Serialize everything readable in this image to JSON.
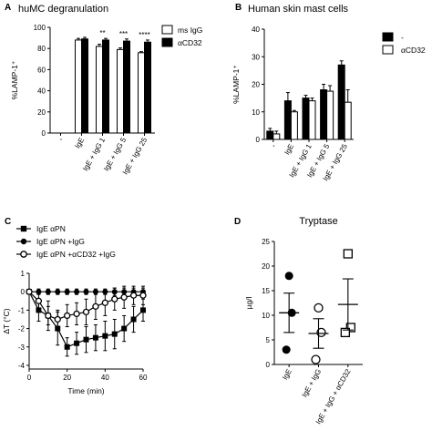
{
  "chart_data": [
    {
      "panel": "A",
      "type": "bar",
      "title": "huMC degranulation",
      "ylabel": "%LAMP-1⁺",
      "ylim": [
        0,
        100
      ],
      "yticks": [
        0,
        20,
        40,
        60,
        80,
        100
      ],
      "categories": [
        "-",
        "IgE",
        "IgE + IgG 1",
        "IgE + IgG 5",
        "IgE + IgG 25"
      ],
      "series": [
        {
          "name": "ms IgG",
          "color": "#ffffff",
          "values": [
            0,
            88,
            82,
            79,
            76
          ],
          "errors": [
            0,
            1.5,
            2,
            1.5,
            1
          ]
        },
        {
          "name": "αCD32",
          "color": "#000000",
          "values": [
            0,
            89,
            88,
            87,
            86
          ],
          "errors": [
            0,
            1.5,
            1.5,
            2,
            2
          ]
        }
      ],
      "significance": [
        "",
        "",
        "**",
        "***",
        "****"
      ]
    },
    {
      "panel": "B",
      "type": "bar",
      "title": "Human skin mast cells",
      "ylabel": "%LAMP-1⁺",
      "ylim": [
        0,
        40
      ],
      "yticks": [
        0,
        10,
        20,
        30,
        40
      ],
      "categories": [
        "-",
        "IgE",
        "IgE + IgG 1",
        "IgE + IgG 5",
        "IgE + IgG 25"
      ],
      "series": [
        {
          "name": "-",
          "color": "#000000",
          "values": [
            3,
            14,
            15,
            18,
            27
          ],
          "errors": [
            1,
            3,
            1,
            2,
            1.5
          ]
        },
        {
          "name": "αCD32",
          "color": "#ffffff",
          "values": [
            2,
            10,
            14,
            17.5,
            13.5
          ],
          "errors": [
            1,
            0.5,
            1,
            2,
            4.5
          ]
        }
      ]
    },
    {
      "panel": "C",
      "type": "line",
      "xlabel": "Time (min)",
      "ylabel": "ΔT (°C)",
      "xlim": [
        0,
        60
      ],
      "ylim": [
        -4.2,
        1
      ],
      "xticks": [
        0,
        20,
        40,
        60
      ],
      "yticks": [
        1,
        0,
        -1,
        -2,
        -3,
        -4
      ],
      "series": [
        {
          "name": "IgE αPN",
          "marker": "square-filled",
          "x": [
            0,
            5,
            10,
            15,
            20,
            25,
            30,
            35,
            40,
            45,
            50,
            55,
            60
          ],
          "y": [
            0,
            -1,
            -1.3,
            -2,
            -3,
            -2.8,
            -2.6,
            -2.5,
            -2.4,
            -2.3,
            -2,
            -1.5,
            -1
          ],
          "err": [
            0,
            0.6,
            0.8,
            0.9,
            0.5,
            0.6,
            0.7,
            0.7,
            0.8,
            0.8,
            0.7,
            0.7,
            0.6
          ]
        },
        {
          "name": "IgE αPN +IgG",
          "marker": "circle-filled",
          "x": [
            0,
            5,
            10,
            15,
            20,
            25,
            30,
            35,
            40,
            45,
            50,
            55,
            60
          ],
          "y": [
            0,
            0,
            0,
            0,
            0,
            0,
            0,
            0,
            0,
            0,
            0,
            0,
            0
          ],
          "err": [
            0,
            0.15,
            0.15,
            0.15,
            0.15,
            0.15,
            0.15,
            0.15,
            0.15,
            0.2,
            0.2,
            0.2,
            0.2
          ]
        },
        {
          "name": "IgE αPN +αCD32 +IgG",
          "marker": "circle-open",
          "x": [
            0,
            5,
            10,
            15,
            20,
            25,
            30,
            35,
            40,
            45,
            50,
            55,
            60
          ],
          "y": [
            0,
            -0.5,
            -1.3,
            -1.5,
            -1.3,
            -1.2,
            -1.1,
            -0.8,
            -0.6,
            -0.4,
            -0.3,
            -0.2,
            -0.2
          ],
          "err": [
            0,
            0.4,
            0.5,
            0.5,
            0.6,
            0.6,
            0.7,
            0.7,
            0.7,
            0.6,
            0.6,
            0.5,
            0.5
          ]
        }
      ]
    },
    {
      "panel": "D",
      "type": "scatter",
      "title": "Tryptase",
      "ylabel": "µg/l",
      "ylim": [
        0,
        25
      ],
      "yticks": [
        0,
        5,
        10,
        15,
        20,
        25
      ],
      "categories": [
        "IgE",
        "IgE + IgG",
        "IgE + IgG + αCD32"
      ],
      "groups": [
        {
          "marker": "circle-filled",
          "points": [
            18,
            10.5,
            3
          ],
          "mean": 10.5,
          "sem": 4
        },
        {
          "marker": "circle-open",
          "points": [
            11.5,
            6.5,
            1
          ],
          "mean": 6.3,
          "sem": 3
        },
        {
          "marker": "square-open",
          "points": [
            22.5,
            7.5,
            6.5
          ],
          "mean": 12.2,
          "sem": 5.2
        }
      ]
    }
  ]
}
